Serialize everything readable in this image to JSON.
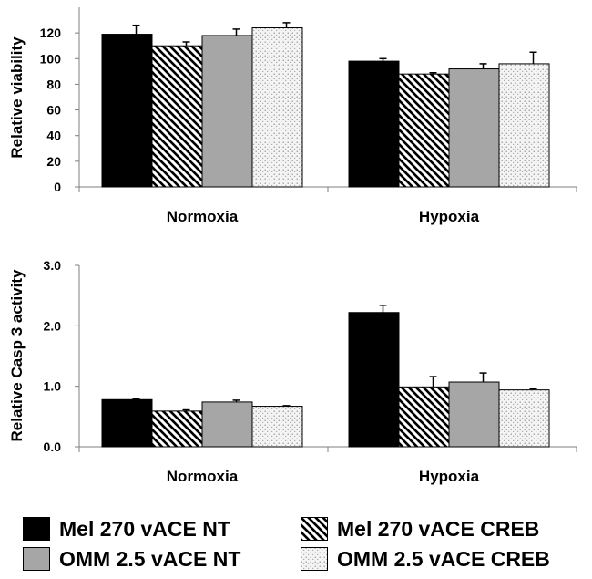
{
  "chart_data": [
    {
      "type": "bar",
      "title": "",
      "xlabel": "",
      "ylabel": "Relative viability",
      "ylim": [
        0,
        140
      ],
      "yticks": [
        "0",
        "20",
        "40",
        "60",
        "80",
        "100",
        "120"
      ],
      "categories": [
        "Normoxia",
        "Hypoxia"
      ],
      "error_bars": true,
      "series": [
        {
          "name": "Mel 270 vACE NT",
          "values": [
            119,
            98
          ],
          "errors": [
            7,
            2
          ]
        },
        {
          "name": "Mel 270 vACE CREB",
          "values": [
            110,
            88
          ],
          "errors": [
            3,
            1
          ]
        },
        {
          "name": "OMM 2.5 vACE NT",
          "values": [
            118,
            92
          ],
          "errors": [
            5,
            4
          ]
        },
        {
          "name": "OMM 2.5 vACE CREB",
          "values": [
            124,
            96
          ],
          "errors": [
            4,
            9
          ]
        }
      ]
    },
    {
      "type": "bar",
      "title": "",
      "xlabel": "",
      "ylabel": "Relative Casp 3 activity",
      "ylim": [
        0,
        3.0
      ],
      "yticks": [
        "0.0",
        "1.0",
        "2.0",
        "3.0"
      ],
      "categories": [
        "Normoxia",
        "Hypoxia"
      ],
      "error_bars": true,
      "series": [
        {
          "name": "Mel 270 vACE NT",
          "values": [
            0.78,
            2.22
          ],
          "errors": [
            0.01,
            0.12
          ]
        },
        {
          "name": "Mel 270 vACE CREB",
          "values": [
            0.59,
            0.99
          ],
          "errors": [
            0.02,
            0.17
          ]
        },
        {
          "name": "OMM 2.5 vACE NT",
          "values": [
            0.74,
            1.07
          ],
          "errors": [
            0.03,
            0.15
          ]
        },
        {
          "name": "OMM 2.5 vACE CREB",
          "values": [
            0.67,
            0.94
          ],
          "errors": [
            0.01,
            0.02
          ]
        }
      ]
    }
  ],
  "legend": [
    {
      "label": "Mel 270 vACE NT",
      "pattern": "solid-black"
    },
    {
      "label": "Mel 270 vACE CREB",
      "pattern": "diagonal-stripes"
    },
    {
      "label": "OMM 2.5 vACE NT",
      "pattern": "solid-gray"
    },
    {
      "label": "OMM 2.5 vACE CREB",
      "pattern": "stipple"
    }
  ],
  "colors": {
    "mel_nt": "#000000",
    "omm_nt": "#a6a6a6",
    "stripe": "#000000",
    "dots": "#8c8c8c",
    "axis": "#7f7f7f"
  }
}
